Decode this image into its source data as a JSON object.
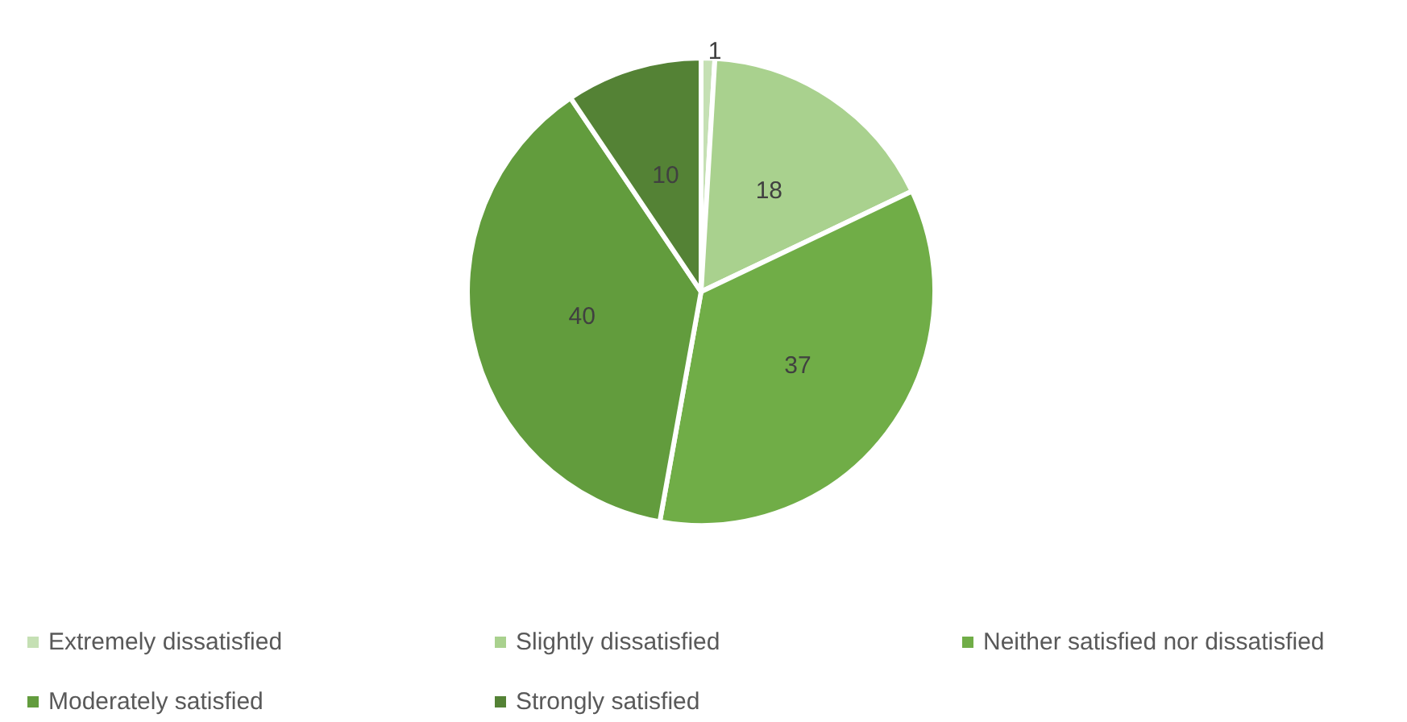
{
  "chart_data": {
    "type": "pie",
    "categories": [
      "Extremely dissatisfied",
      "Slightly dissatisfied",
      "Neither satisfied nor dissatisfied",
      "Moderately satisfied",
      "Strongly satisfied"
    ],
    "values": [
      1,
      18,
      37,
      40,
      10
    ],
    "colors": [
      "#c5e0b4",
      "#a9d18e",
      "#70ad47",
      "#629c3d",
      "#548235"
    ],
    "data_labels": true,
    "legend": "bottom"
  }
}
